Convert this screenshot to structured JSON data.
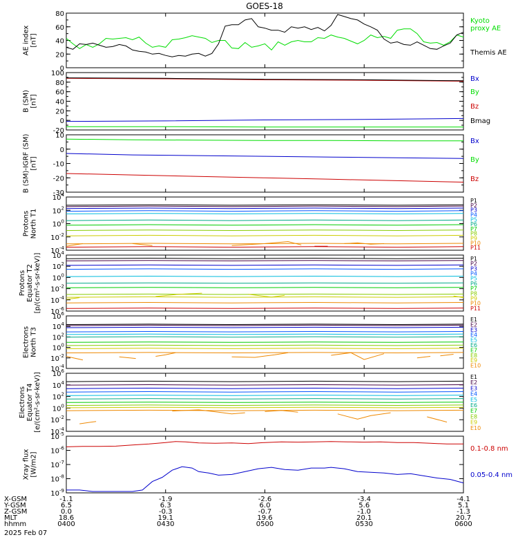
{
  "title": "GOES-18",
  "colors": {
    "black": "#000000",
    "green": "#00dd00",
    "blue": "#0000cc",
    "red": "#cc0000",
    "P": [
      "#000000",
      "#440044",
      "#0000cc",
      "#0055ff",
      "#00bbdd",
      "#00aa88",
      "#00cc00",
      "#88cc00",
      "#cccc00",
      "#ee8800",
      "#cc0000"
    ],
    "E": [
      "#000000",
      "#440044",
      "#0000cc",
      "#0055ff",
      "#00bbdd",
      "#00aa88",
      "#00cc00",
      "#88cc00",
      "#cccc00",
      "#ee8800",
      "#cc0000"
    ]
  },
  "chart_data": [
    {
      "type": "line",
      "id": "ae",
      "ylabel": "AE index\n[nT]",
      "ylim": [
        0,
        80
      ],
      "yticks": [
        0,
        20,
        40,
        60,
        80
      ],
      "xlim": [
        0,
        120
      ],
      "legend": [
        "Kyoto\nproxy AE",
        "Themis AE"
      ],
      "series": [
        {
          "name": "Kyoto\nproxy AE",
          "color": "green",
          "x": [
            0,
            2,
            4,
            6,
            8,
            10,
            12,
            14,
            16,
            18,
            20,
            22,
            24,
            26,
            28,
            30,
            32,
            34,
            36,
            38,
            40,
            42,
            44,
            46,
            48,
            50,
            52,
            54,
            56,
            58,
            60,
            62,
            64,
            66,
            68,
            70,
            72,
            74,
            76,
            78,
            80,
            82,
            84,
            86,
            88,
            90,
            92,
            94,
            96,
            98,
            100,
            102,
            104,
            106,
            108,
            110,
            112,
            114,
            116,
            118,
            120
          ],
          "y": [
            43,
            35,
            28,
            34,
            30,
            35,
            43,
            42,
            43,
            44,
            41,
            45,
            36,
            30,
            32,
            30,
            41,
            42,
            44,
            47,
            45,
            43,
            37,
            40,
            40,
            29,
            28,
            37,
            30,
            32,
            35,
            26,
            38,
            33,
            38,
            40,
            38,
            38,
            44,
            43,
            48,
            45,
            43,
            39,
            35,
            40,
            48,
            44,
            46,
            43,
            55,
            57,
            57,
            50,
            38,
            36,
            37,
            33,
            38,
            48,
            45
          ]
        },
        {
          "name": "Themis AE",
          "color": "black",
          "x": [
            0,
            2,
            4,
            6,
            8,
            10,
            12,
            14,
            16,
            18,
            20,
            22,
            24,
            26,
            28,
            30,
            32,
            34,
            36,
            38,
            40,
            42,
            44,
            46,
            48,
            50,
            52,
            54,
            56,
            58,
            60,
            62,
            64,
            66,
            68,
            70,
            72,
            74,
            76,
            78,
            80,
            82,
            84,
            86,
            88,
            90,
            92,
            94,
            96,
            98,
            100,
            102,
            104,
            106,
            108,
            110,
            112,
            114,
            116,
            118,
            120
          ],
          "y": [
            30,
            27,
            35,
            34,
            36,
            33,
            30,
            31,
            34,
            32,
            26,
            24,
            23,
            20,
            21,
            18,
            16,
            18,
            17,
            20,
            21,
            17,
            21,
            35,
            61,
            63,
            63,
            70,
            72,
            60,
            58,
            55,
            55,
            52,
            60,
            58,
            60,
            56,
            59,
            54,
            62,
            78,
            75,
            72,
            70,
            64,
            60,
            55,
            42,
            36,
            38,
            34,
            33,
            38,
            33,
            28,
            27,
            32,
            36,
            48,
            52
          ]
        }
      ]
    },
    {
      "type": "line",
      "id": "bsm",
      "ylabel": "B (SM)\n[nT]",
      "ylim": [
        -20,
        100
      ],
      "yticks": [
        -20,
        0,
        20,
        40,
        60,
        80,
        100
      ],
      "xlim": [
        0,
        120
      ],
      "legend": [
        "Bx",
        "By",
        "Bz",
        "Bmag"
      ],
      "series": [
        {
          "name": "Bx",
          "color": "blue",
          "x": [
            0,
            30,
            60,
            90,
            120
          ],
          "y": [
            -2,
            -1,
            1,
            2,
            4
          ]
        },
        {
          "name": "By",
          "color": "green",
          "x": [
            0,
            30,
            60,
            90,
            120
          ],
          "y": [
            -13,
            -13,
            -14,
            -14,
            -14
          ]
        },
        {
          "name": "Bz",
          "color": "red",
          "x": [
            0,
            30,
            60,
            90,
            120
          ],
          "y": [
            88,
            87,
            85,
            84,
            82
          ]
        },
        {
          "name": "Bmag",
          "color": "black",
          "x": [
            0,
            30,
            60,
            90,
            120
          ],
          "y": [
            89,
            88,
            86,
            85,
            83
          ]
        }
      ]
    },
    {
      "type": "line",
      "id": "bigrf",
      "ylabel": "B (SM)-IGRF (SM)\n[nT]",
      "ylim": [
        -30,
        10
      ],
      "yticks": [
        -30,
        -20,
        -10,
        0,
        10
      ],
      "xlim": [
        0,
        120
      ],
      "legend": [
        "Bx",
        "By",
        "Bz"
      ],
      "series": [
        {
          "name": "Bx",
          "color": "blue",
          "x": [
            0,
            20,
            40,
            60,
            80,
            100,
            120
          ],
          "y": [
            -3,
            -4,
            -4.5,
            -5,
            -5.5,
            -6,
            -6.5
          ]
        },
        {
          "name": "By",
          "color": "green",
          "x": [
            0,
            20,
            40,
            60,
            80,
            100,
            120
          ],
          "y": [
            7,
            6.5,
            6.3,
            6,
            6,
            5.8,
            5.8
          ]
        },
        {
          "name": "Bz",
          "color": "red",
          "x": [
            0,
            20,
            40,
            60,
            80,
            100,
            120
          ],
          "y": [
            -17,
            -18,
            -19,
            -20,
            -21,
            -22,
            -23
          ]
        }
      ]
    },
    {
      "type": "line",
      "id": "pn",
      "logy": true,
      "ylabel": "Protons\nNorth T1",
      "ylim": [
        -4,
        4
      ],
      "yticks": [
        -4,
        -2,
        0,
        2,
        4
      ],
      "xlim": [
        0,
        120
      ],
      "legend": [
        "P1",
        "P2",
        "P3",
        "P4",
        "P5",
        "P6",
        "P7",
        "P8",
        "P9",
        "P10",
        "P11"
      ],
      "levels": [
        2.8,
        2.6,
        2.3,
        1.9,
        1.5,
        0.5,
        -0.2,
        -1.0,
        -1.8,
        -3.0,
        -3.5
      ],
      "segments": [
        {
          "channel": 9,
          "x": [
            0,
            5
          ],
          "y": [
            -3.4,
            -3.0
          ]
        },
        {
          "channel": 9,
          "x": [
            20,
            26
          ],
          "y": [
            -3.0,
            -3.3
          ]
        },
        {
          "channel": 9,
          "x": [
            50,
            60,
            67,
            71
          ],
          "y": [
            -3.3,
            -3.0,
            -2.7,
            -3.2
          ]
        },
        {
          "channel": 9,
          "x": [
            84,
            88,
            92,
            96
          ],
          "y": [
            -3.0,
            -2.9,
            -3.1,
            -3.0
          ]
        },
        {
          "channel": 10,
          "x": [
            75,
            79
          ],
          "y": [
            -3.4,
            -3.4
          ]
        }
      ]
    },
    {
      "type": "line",
      "id": "pe",
      "logy": true,
      "ylabel": "Protons\nEquator T2\n[p/(cm²-s-sr-keV)]",
      "ylim": [
        -6,
        4
      ],
      "yticks": [
        -6,
        -4,
        -2,
        0,
        2,
        4
      ],
      "xlim": [
        0,
        120
      ],
      "legend": [
        "P1",
        "P2",
        "P3",
        "P4",
        "P5",
        "P6",
        "P7",
        "P8",
        "P9",
        "P10",
        "P11"
      ],
      "levels": [
        3.4,
        3.0,
        2.2,
        1.5,
        0.2,
        -1.0,
        -1.8,
        -3.0,
        -3.5,
        -4.5,
        -5.5
      ],
      "segments": [
        {
          "channel": 8,
          "x": [
            0,
            4
          ],
          "y": [
            -3.9,
            -3.6
          ]
        },
        {
          "channel": 8,
          "x": [
            27,
            34,
            41
          ],
          "y": [
            -3.4,
            -3.0,
            -2.8
          ]
        },
        {
          "channel": 8,
          "x": [
            55,
            62,
            66
          ],
          "y": [
            -3.0,
            -3.5,
            -3.2
          ]
        },
        {
          "channel": 8,
          "x": [
            117,
            120
          ],
          "y": [
            -3.3,
            -3.6
          ]
        }
      ]
    },
    {
      "type": "line",
      "id": "en",
      "logy": true,
      "ylabel": "Electrons\nNorth T3",
      "ylim": [
        -4,
        6
      ],
      "yticks": [
        -4,
        -2,
        0,
        2,
        4,
        6
      ],
      "xlim": [
        0,
        120
      ],
      "legend": [
        "E1",
        "E2",
        "E3",
        "E4",
        "E5",
        "E6",
        "E7",
        "E8",
        "E9",
        "E10"
      ],
      "levels": [
        4.4,
        4.2,
        3.8,
        3.0,
        2.5,
        2.0,
        1.0,
        0.4,
        -0.2,
        -1.0
      ],
      "segments": [
        {
          "channel": 9,
          "x": [
            0,
            5
          ],
          "y": [
            -1.7,
            -2.4
          ]
        },
        {
          "channel": 9,
          "x": [
            16,
            21
          ],
          "y": [
            -1.8,
            -2.1
          ]
        },
        {
          "channel": 9,
          "x": [
            27,
            30,
            33
          ],
          "y": [
            -1.7,
            -1.4,
            -1.0
          ]
        },
        {
          "channel": 9,
          "x": [
            50,
            57,
            63,
            67
          ],
          "y": [
            -1.8,
            -1.9,
            -1.4,
            -1.0
          ]
        },
        {
          "channel": 9,
          "x": [
            80,
            86,
            90,
            96
          ],
          "y": [
            -1.5,
            -1.0,
            -2.3,
            -1.2
          ]
        },
        {
          "channel": 9,
          "x": [
            106,
            110
          ],
          "y": [
            -2.0,
            -1.7
          ]
        },
        {
          "channel": 9,
          "x": [
            113,
            117
          ],
          "y": [
            -1.6,
            -1.3
          ]
        }
      ]
    },
    {
      "type": "line",
      "id": "ee",
      "logy": true,
      "ylabel": "Electrons\nEquator T4\n[e/(cm²-s-sr-keV)]",
      "ylim": [
        -4,
        6
      ],
      "yticks": [
        -4,
        -2,
        0,
        2,
        4,
        6
      ],
      "xlim": [
        0,
        120
      ],
      "legend": [
        "E1",
        "E2",
        "E3",
        "E4",
        "E5",
        "E6",
        "E7",
        "E8",
        "E9",
        "E10"
      ],
      "levels": [
        4.6,
        4.0,
        3.4,
        2.8,
        2.2,
        1.6,
        1.0,
        0.5,
        0.1,
        -0.4
      ],
      "segments": [
        {
          "channel": 9,
          "x": [
            4,
            9
          ],
          "y": [
            -2.7,
            -2.3
          ]
        },
        {
          "channel": 9,
          "x": [
            32,
            40,
            46,
            50,
            54
          ],
          "y": [
            -0.5,
            -0.3,
            -0.7,
            -1.0,
            -0.8
          ]
        },
        {
          "channel": 9,
          "x": [
            60,
            65,
            70
          ],
          "y": [
            -0.6,
            -0.4,
            -0.7
          ]
        },
        {
          "channel": 9,
          "x": [
            82,
            88,
            92,
            98
          ],
          "y": [
            -1.0,
            -1.9,
            -1.3,
            -0.8
          ]
        },
        {
          "channel": 9,
          "x": [
            109,
            115
          ],
          "y": [
            -1.5,
            -2.4
          ]
        }
      ]
    },
    {
      "type": "line",
      "id": "xray",
      "logy": true,
      "ylabel": "Xray flux\n[W/m2]",
      "ylim": [
        -9,
        -5
      ],
      "yticks": [
        -9,
        -8,
        -7,
        -6,
        -5
      ],
      "xlim": [
        0,
        120
      ],
      "legend": [
        "0.1-0.8 nm",
        "0.05-0.4 nm"
      ],
      "series": [
        {
          "name": "0.1-0.8 nm",
          "color": "red",
          "x": [
            0,
            5,
            10,
            15,
            20,
            25,
            30,
            33,
            36,
            40,
            45,
            50,
            55,
            60,
            65,
            70,
            75,
            80,
            85,
            90,
            95,
            100,
            105,
            110,
            115,
            120
          ],
          "y": [
            -5.75,
            -5.72,
            -5.72,
            -5.7,
            -5.62,
            -5.55,
            -5.45,
            -5.38,
            -5.4,
            -5.48,
            -5.5,
            -5.48,
            -5.52,
            -5.45,
            -5.4,
            -5.42,
            -5.4,
            -5.38,
            -5.4,
            -5.42,
            -5.4,
            -5.45,
            -5.45,
            -5.5,
            -5.55,
            -5.55
          ]
        },
        {
          "name": "0.05-0.4 nm",
          "color": "blue",
          "x": [
            0,
            4,
            8,
            12,
            16,
            20,
            23,
            26,
            29,
            32,
            35,
            38,
            40,
            43,
            46,
            50,
            54,
            58,
            62,
            66,
            70,
            74,
            78,
            80,
            84,
            88,
            92,
            96,
            100,
            104,
            108,
            112,
            116,
            120
          ],
          "y": [
            -8.8,
            -8.8,
            -8.9,
            -8.9,
            -8.9,
            -8.9,
            -8.8,
            -8.2,
            -7.9,
            -7.4,
            -7.15,
            -7.25,
            -7.5,
            -7.6,
            -7.75,
            -7.7,
            -7.5,
            -7.3,
            -7.2,
            -7.35,
            -7.4,
            -7.25,
            -7.25,
            -7.2,
            -7.3,
            -7.5,
            -7.55,
            -7.6,
            -7.7,
            -7.65,
            -7.8,
            -7.95,
            -8.05,
            -8.3
          ]
        }
      ]
    }
  ],
  "x_axis": {
    "row_labels": [
      "X-GSM",
      "Y-GSM",
      "Z-GSM",
      "MLT",
      "hhmm",
      "2025 Feb 07"
    ],
    "tick_x": [
      0,
      30,
      60,
      90,
      120
    ],
    "rows": [
      [
        "-1.1",
        "-1.9",
        "-2.6",
        "-3.4",
        "-4.1"
      ],
      [
        "6.5",
        "6.3",
        "6.0",
        "5.6",
        "5.1"
      ],
      [
        "0.0",
        "-0.3",
        "-0.7",
        "-1.0",
        "-1.3"
      ],
      [
        "18.6",
        "19.1",
        "19.6",
        "20.1",
        "20.7"
      ],
      [
        "0400",
        "0430",
        "0500",
        "0530",
        "0600"
      ]
    ]
  }
}
